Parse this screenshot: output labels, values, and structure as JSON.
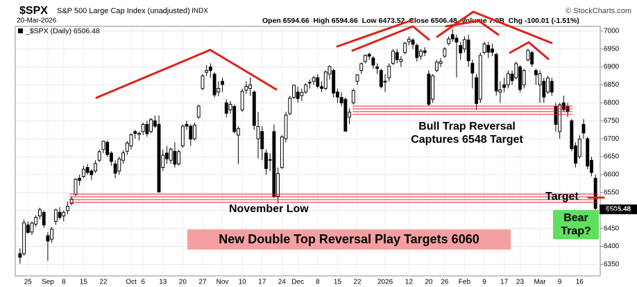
{
  "chart_data": {
    "type": "candlestick",
    "symbol": "$SPX",
    "title": "S&P 500 Large Cap Index (unadjusted)",
    "exchange": "INDX",
    "date": "20-Mar-2026",
    "stats": "Open 6594.66  High 6594.66  Low 6473.52  Close 6506.48  Volume 7.0B  Chg -100.01 (-1.51%)",
    "credit": "© StockCharts.com",
    "legend": "_$SPX (Daily) 6506.48",
    "last_price_label": "6506.48",
    "color": "#000000",
    "ylim": [
      6318,
      7013
    ],
    "yticks": [
      6350,
      6400,
      6450,
      6500,
      6550,
      6600,
      6650,
      6700,
      6750,
      6800,
      6850,
      6900,
      6950,
      7000
    ],
    "grid": true,
    "annotations": {
      "bull_trap": [
        "Bull Trap Reversal",
        "Captures 6548 Target"
      ],
      "november_low": "November Low",
      "target": "Target",
      "bear_trap": [
        "Bear",
        "Trap?"
      ],
      "headline": "New Double Top Reversal Play Targets 6060"
    },
    "categories": [
      null,
      null,
      "25",
      null,
      null,
      null,
      null,
      "Sep",
      null,
      null,
      null,
      "8",
      null,
      null,
      null,
      null,
      "15",
      null,
      null,
      null,
      null,
      "22",
      null,
      null,
      null,
      null,
      null,
      null,
      "Oct",
      null,
      null,
      "6",
      null,
      null,
      null,
      null,
      "13",
      null,
      null,
      null,
      null,
      "20",
      null,
      null,
      null,
      null,
      "27",
      null,
      null,
      null,
      null,
      "Nov",
      null,
      null,
      null,
      null,
      "10",
      null,
      null,
      null,
      null,
      "17",
      null,
      null,
      null,
      null,
      "24",
      null,
      null,
      null,
      "Dec",
      null,
      null,
      null,
      null,
      "8",
      null,
      null,
      null,
      null,
      "15",
      null,
      null,
      null,
      null,
      "22",
      null,
      null,
      null,
      null,
      null,
      null,
      "2026",
      null,
      null,
      null,
      null,
      null,
      "12",
      null,
      null,
      null,
      null,
      "20",
      null,
      null,
      null,
      "26",
      null,
      null,
      null,
      null,
      "Feb",
      null,
      null,
      null,
      null,
      "9",
      null,
      null,
      null,
      null,
      "17",
      null,
      null,
      null,
      "23",
      null,
      null,
      null,
      null,
      "Mar",
      null,
      null,
      null,
      null,
      "9",
      null,
      null,
      null,
      null,
      "16",
      null,
      null,
      null,
      null
    ],
    "ohlc": [
      [
        6380,
        6395,
        6352,
        6370
      ],
      [
        6380,
        6475,
        6375,
        6466
      ],
      [
        6460,
        6470,
        6435,
        6439
      ],
      [
        6440,
        6470,
        6432,
        6465
      ],
      [
        6462,
        6487,
        6455,
        6481
      ],
      [
        6485,
        6508,
        6476,
        6502
      ],
      [
        6495,
        6500,
        6452,
        6460
      ],
      [
        6430,
        6440,
        6360,
        6415
      ],
      [
        6420,
        6455,
        6410,
        6448
      ],
      [
        6470,
        6505,
        6460,
        6502
      ],
      [
        6495,
        6510,
        6475,
        6481
      ],
      [
        6485,
        6500,
        6470,
        6495
      ],
      [
        6500,
        6525,
        6490,
        6512
      ],
      [
        6520,
        6540,
        6515,
        6532
      ],
      [
        6545,
        6590,
        6540,
        6587
      ],
      [
        6590,
        6600,
        6570,
        6584
      ],
      [
        6595,
        6625,
        6590,
        6615
      ],
      [
        6620,
        6630,
        6600,
        6606
      ],
      [
        6610,
        6615,
        6585,
        6600
      ],
      [
        6610,
        6640,
        6605,
        6631
      ],
      [
        6640,
        6670,
        6635,
        6664
      ],
      [
        6670,
        6695,
        6660,
        6693
      ],
      [
        6690,
        6695,
        6650,
        6656
      ],
      [
        6660,
        6665,
        6625,
        6637
      ],
      [
        6630,
        6640,
        6590,
        6604
      ],
      [
        6610,
        6650,
        6600,
        6644
      ],
      [
        6640,
        6668,
        6630,
        6661
      ],
      [
        6665,
        6694,
        6655,
        6688
      ],
      [
        6680,
        6715,
        6670,
        6711
      ],
      [
        6720,
        6725,
        6700,
        6715
      ],
      [
        6712,
        6720,
        6695,
        6715
      ],
      [
        6720,
        6745,
        6710,
        6740
      ],
      [
        6740,
        6750,
        6705,
        6714
      ],
      [
        6720,
        6758,
        6715,
        6753
      ],
      [
        6750,
        6765,
        6730,
        6735
      ],
      [
        6740,
        6765,
        6550,
        6552
      ],
      [
        6620,
        6670,
        6610,
        6654
      ],
      [
        6660,
        6680,
        6630,
        6644
      ],
      [
        6640,
        6675,
        6630,
        6671
      ],
      [
        6665,
        6690,
        6620,
        6629
      ],
      [
        6630,
        6670,
        6625,
        6664
      ],
      [
        6680,
        6740,
        6675,
        6735
      ],
      [
        6740,
        6750,
        6725,
        6735
      ],
      [
        6735,
        6740,
        6680,
        6699
      ],
      [
        6700,
        6745,
        6695,
        6738
      ],
      [
        6760,
        6795,
        6755,
        6791
      ],
      [
        6840,
        6880,
        6835,
        6875
      ],
      [
        6885,
        6905,
        6875,
        6890
      ],
      [
        6900,
        6910,
        6870,
        6890
      ],
      [
        6880,
        6885,
        6815,
        6822
      ],
      [
        6830,
        6860,
        6818,
        6840
      ],
      [
        6860,
        6870,
        6830,
        6851
      ],
      [
        6800,
        6810,
        6760,
        6771
      ],
      [
        6780,
        6805,
        6770,
        6796
      ],
      [
        6790,
        6795,
        6715,
        6720
      ],
      [
        6710,
        6735,
        6630,
        6728
      ],
      [
        6780,
        6840,
        6775,
        6832
      ],
      [
        6835,
        6860,
        6825,
        6846
      ],
      [
        6840,
        6870,
        6820,
        6850
      ],
      [
        6830,
        6835,
        6725,
        6737
      ],
      [
        6700,
        6775,
        6645,
        6734
      ],
      [
        6720,
        6735,
        6640,
        6672
      ],
      [
        6660,
        6670,
        6600,
        6617
      ],
      [
        6640,
        6660,
        6610,
        6642
      ],
      [
        6720,
        6740,
        6535,
        6538
      ],
      [
        6540,
        6620,
        6520,
        6603
      ],
      [
        6620,
        6710,
        6615,
        6705
      ],
      [
        6700,
        6775,
        6690,
        6766
      ],
      [
        6770,
        6820,
        6765,
        6813
      ],
      [
        6815,
        6850,
        6810,
        6849
      ],
      [
        6830,
        6845,
        6800,
        6812
      ],
      [
        6820,
        6840,
        6805,
        6829
      ],
      [
        6830,
        6855,
        6825,
        6850
      ],
      [
        6855,
        6865,
        6840,
        6857
      ],
      [
        6860,
        6875,
        6850,
        6870
      ],
      [
        6870,
        6880,
        6840,
        6846
      ],
      [
        6845,
        6860,
        6830,
        6840
      ],
      [
        6840,
        6890,
        6835,
        6886
      ],
      [
        6880,
        6905,
        6865,
        6901
      ],
      [
        6890,
        6895,
        6815,
        6827
      ],
      [
        6830,
        6840,
        6800,
        6816
      ],
      [
        6815,
        6830,
        6790,
        6800
      ],
      [
        6810,
        6815,
        6720,
        6721
      ],
      [
        6760,
        6785,
        6740,
        6774
      ],
      [
        6800,
        6840,
        6795,
        6834
      ],
      [
        6860,
        6880,
        6850,
        6878
      ],
      [
        6890,
        6912,
        6880,
        6909
      ],
      [
        6915,
        6935,
        6910,
        6932
      ],
      [
        6935,
        6940,
        6920,
        6930
      ],
      [
        6925,
        6930,
        6895,
        6905
      ],
      [
        6900,
        6910,
        6880,
        6896
      ],
      [
        6890,
        6895,
        6840,
        6845
      ],
      [
        6860,
        6880,
        6830,
        6858
      ],
      [
        6870,
        6910,
        6860,
        6902
      ],
      [
        6910,
        6950,
        6905,
        6944
      ],
      [
        6940,
        6950,
        6910,
        6920
      ],
      [
        6915,
        6930,
        6900,
        6921
      ],
      [
        6940,
        6970,
        6935,
        6966
      ],
      [
        6970,
        6985,
        6960,
        6977
      ],
      [
        6975,
        6980,
        6950,
        6963
      ],
      [
        6960,
        6965,
        6915,
        6926
      ],
      [
        6930,
        6950,
        6920,
        6944
      ],
      [
        6945,
        6955,
        6930,
        6940
      ],
      [
        6880,
        6890,
        6790,
        6796
      ],
      [
        6810,
        6880,
        6800,
        6875
      ],
      [
        6890,
        6920,
        6885,
        6913
      ],
      [
        6910,
        6925,
        6900,
        6915
      ],
      [
        6930,
        6955,
        6925,
        6950
      ],
      [
        6965,
        6985,
        6960,
        6978
      ],
      [
        6990,
        7005,
        6970,
        6978
      ],
      [
        6980,
        6990,
        6870,
        6969
      ],
      [
        6960,
        6970,
        6920,
        6939
      ],
      [
        6950,
        6985,
        6940,
        6976
      ],
      [
        6975,
        6990,
        6900,
        6917
      ],
      [
        6910,
        6920,
        6840,
        6883
      ],
      [
        6870,
        6880,
        6780,
        6798
      ],
      [
        6810,
        6940,
        6800,
        6932
      ],
      [
        6940,
        6970,
        6935,
        6964
      ],
      [
        6960,
        6970,
        6925,
        6941
      ],
      [
        6950,
        6965,
        6930,
        6941
      ],
      [
        6935,
        6940,
        6820,
        6833
      ],
      [
        6830,
        6860,
        6800,
        6836
      ],
      [
        6850,
        6870,
        6830,
        6843
      ],
      [
        6850,
        6890,
        6840,
        6881
      ],
      [
        6880,
        6890,
        6850,
        6862
      ],
      [
        6870,
        6915,
        6865,
        6909
      ],
      [
        6900,
        6905,
        6830,
        6837
      ],
      [
        6850,
        6895,
        6840,
        6890
      ],
      [
        6920,
        6950,
        6915,
        6946
      ],
      [
        6940,
        6945,
        6900,
        6908
      ],
      [
        6890,
        6895,
        6850,
        6878
      ],
      [
        6850,
        6890,
        6800,
        6881
      ],
      [
        6860,
        6870,
        6800,
        6816
      ],
      [
        6830,
        6875,
        6825,
        6869
      ],
      [
        6860,
        6870,
        6820,
        6830
      ],
      [
        6790,
        6800,
        6720,
        6740
      ],
      [
        6720,
        6800,
        6700,
        6795
      ],
      [
        6800,
        6820,
        6775,
        6781
      ],
      [
        6790,
        6800,
        6760,
        6775
      ],
      [
        6750,
        6755,
        6665,
        6672
      ],
      [
        6680,
        6690,
        6620,
        6632
      ],
      [
        6650,
        6710,
        6645,
        6699
      ],
      [
        6740,
        6755,
        6700,
        6716
      ],
      [
        6700,
        6705,
        6615,
        6624
      ],
      [
        6640,
        6650,
        6595,
        6606
      ],
      [
        6590,
        6600,
        6470,
        6506
      ]
    ]
  }
}
